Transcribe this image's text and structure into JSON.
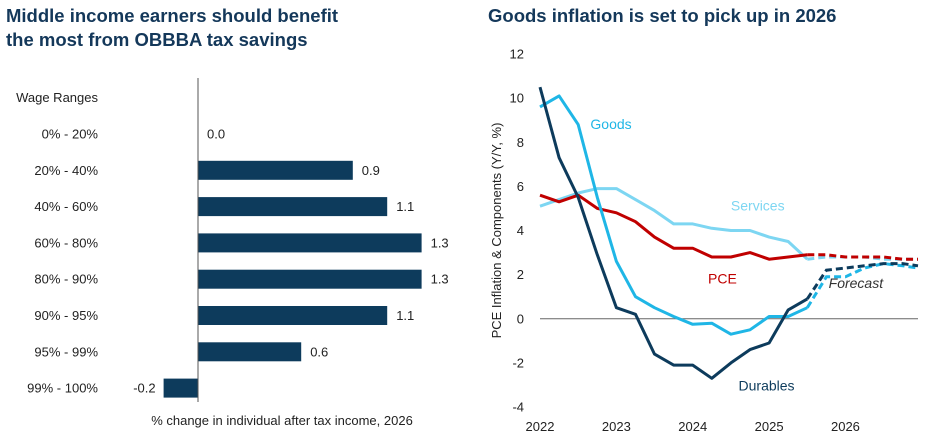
{
  "left": {
    "title_line1": "Middle income earners should benefit",
    "title_line2": "the most from OBBBA tax savings"
  },
  "right": {
    "title": "Goods inflation is set to pick up in 2026"
  },
  "colors": {
    "title": "#14385a",
    "bar": "#0d3b5c",
    "goods": "#1fb6e6",
    "services": "#7dd6f2",
    "pce": "#c00000",
    "durables": "#0d3b5c"
  },
  "chart_data": [
    {
      "type": "bar",
      "orientation": "horizontal",
      "title": "Middle income earners should benefit the most from OBBBA tax savings",
      "category_header": "Wage Ranges",
      "categories": [
        "0% - 20%",
        "20% - 40%",
        "40% - 60%",
        "60% - 80%",
        "80% - 90%",
        "90% - 95%",
        "95% - 99%",
        "99% - 100%"
      ],
      "values": [
        0.0,
        0.9,
        1.1,
        1.3,
        1.3,
        1.1,
        0.6,
        -0.2
      ],
      "value_labels": [
        "0.0",
        "0.9",
        "1.1",
        "1.3",
        "1.3",
        "1.1",
        "0.6",
        "-0.2"
      ],
      "xlabel": "% change in individual after tax income, 2026",
      "xlim": [
        -0.2,
        1.45
      ]
    },
    {
      "type": "line",
      "title": "Goods inflation is set to pick up in 2026",
      "ylabel": "PCE Inflation & Components (Y/Y, %)",
      "ylim": [
        -4,
        12
      ],
      "yticks": [
        "12",
        "10",
        "8",
        "6",
        "4",
        "2",
        "0",
        "-2",
        "-4"
      ],
      "xlim": [
        2022.0,
        2026.95
      ],
      "xticks": [
        "2022",
        "2023",
        "2024",
        "2025",
        "2026"
      ],
      "annotation": "Forecast",
      "forecast_start": 2025.5,
      "series": [
        {
          "name": "Goods",
          "x": [
            2022.0,
            2022.25,
            2022.5,
            2022.75,
            2023.0,
            2023.25,
            2023.5,
            2023.75,
            2024.0,
            2024.25,
            2024.5,
            2024.75,
            2025.0,
            2025.25,
            2025.5,
            2025.75,
            2026.0,
            2026.25,
            2026.5,
            2026.75,
            2026.95
          ],
          "values": [
            9.6,
            10.1,
            8.8,
            5.5,
            2.6,
            1.0,
            0.5,
            0.1,
            -0.25,
            -0.2,
            -0.7,
            -0.5,
            0.1,
            0.1,
            0.5,
            1.9,
            1.9,
            2.3,
            2.5,
            2.4,
            2.3
          ]
        },
        {
          "name": "Services",
          "x": [
            2022.0,
            2022.25,
            2022.5,
            2022.75,
            2023.0,
            2023.25,
            2023.5,
            2023.75,
            2024.0,
            2024.25,
            2024.5,
            2024.75,
            2025.0,
            2025.25,
            2025.5,
            2025.75,
            2026.0,
            2026.25,
            2026.5,
            2026.75,
            2026.95
          ],
          "values": [
            5.1,
            5.4,
            5.7,
            5.9,
            5.9,
            5.4,
            4.9,
            4.3,
            4.3,
            4.1,
            4.0,
            4.0,
            3.7,
            3.5,
            2.7,
            2.8,
            2.8,
            2.8,
            2.7,
            2.7,
            2.7
          ]
        },
        {
          "name": "PCE",
          "x": [
            2022.0,
            2022.25,
            2022.5,
            2022.75,
            2023.0,
            2023.25,
            2023.5,
            2023.75,
            2024.0,
            2024.25,
            2024.5,
            2024.75,
            2025.0,
            2025.25,
            2025.5,
            2025.75,
            2026.0,
            2026.25,
            2026.5,
            2026.75,
            2026.95
          ],
          "values": [
            5.6,
            5.3,
            5.6,
            5.0,
            4.8,
            4.4,
            3.7,
            3.2,
            3.2,
            2.8,
            2.8,
            3.0,
            2.7,
            2.8,
            2.9,
            2.9,
            2.8,
            2.8,
            2.8,
            2.7,
            2.7
          ]
        },
        {
          "name": "Durables",
          "x": [
            2022.0,
            2022.25,
            2022.5,
            2022.75,
            2023.0,
            2023.25,
            2023.5,
            2023.75,
            2024.0,
            2024.25,
            2024.5,
            2024.75,
            2025.0,
            2025.25,
            2025.5,
            2025.75,
            2026.0,
            2026.25,
            2026.5,
            2026.75,
            2026.95
          ],
          "values": [
            10.5,
            7.3,
            5.5,
            2.9,
            0.5,
            0.2,
            -1.6,
            -2.1,
            -2.1,
            -2.7,
            -2.0,
            -1.4,
            -1.1,
            0.4,
            0.9,
            2.2,
            2.3,
            2.4,
            2.5,
            2.5,
            2.4
          ]
        }
      ]
    }
  ]
}
